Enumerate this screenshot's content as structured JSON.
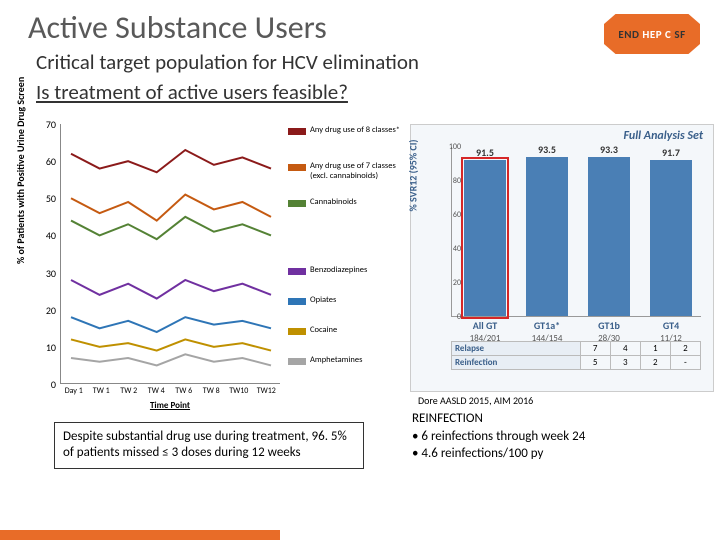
{
  "title": "Active Substance Users",
  "subtitle": "Critical target population for HCV elimination",
  "question": "Is treatment of active users feasible?",
  "logo": {
    "end": "END",
    "hepc": "HEP C",
    "sf": "SF",
    "bg": "#e86c28"
  },
  "line_chart": {
    "ylabel": "% of Patients with Positive Urine Drug Screen",
    "ylim": [
      0,
      70
    ],
    "ytick_step": 10,
    "xlabels": [
      "Day 1",
      "TW 1",
      "TW 2",
      "TW 4",
      "TW 6",
      "TW 8",
      "TW10",
      "TW12"
    ],
    "xaxis_title": "Time Point",
    "series": [
      {
        "label": "Any drug use of 8 classes*",
        "color": "#8b1a1a",
        "y": [
          62,
          58,
          60,
          57,
          63,
          59,
          61,
          58
        ]
      },
      {
        "label": "Any drug use of 7 classes (excl. cannabinoids)",
        "color": "#c55a11",
        "y": [
          50,
          46,
          49,
          44,
          51,
          47,
          49,
          45
        ]
      },
      {
        "label": "Cannabinoids",
        "color": "#548235",
        "y": [
          44,
          40,
          43,
          39,
          45,
          41,
          43,
          40
        ]
      },
      {
        "label": "Benzodiazepines",
        "color": "#7030a0",
        "y": [
          28,
          24,
          27,
          23,
          28,
          25,
          27,
          24
        ]
      },
      {
        "label": "Opiates",
        "color": "#2e75b6",
        "y": [
          18,
          15,
          17,
          14,
          18,
          16,
          17,
          15
        ]
      },
      {
        "label": "Cocaine",
        "color": "#bf9000",
        "y": [
          12,
          10,
          11,
          9,
          12,
          10,
          11,
          9
        ]
      },
      {
        "label": "Amphetamines",
        "color": "#a5a5a5",
        "y": [
          7,
          6,
          7,
          5,
          8,
          6,
          7,
          5
        ]
      }
    ],
    "legend_spacing": [
      0,
      36,
      36,
      68,
      30,
      30,
      30
    ]
  },
  "bar_chart": {
    "title": "Full Analysis Set",
    "ylabel": "% SVR12 (95% CI)",
    "ylim": [
      0,
      100
    ],
    "yticks": [
      0,
      20,
      40,
      60,
      80,
      100
    ],
    "bars": [
      {
        "cat": "All GT",
        "frac": "184/201",
        "val": 91.5,
        "color": "#4a7fb5",
        "highlight": true
      },
      {
        "cat": "GT1a*",
        "frac": "144/154",
        "val": 93.5,
        "color": "#4a7fb5",
        "highlight": false
      },
      {
        "cat": "GT1b",
        "frac": "28/30",
        "val": 93.3,
        "color": "#4a7fb5",
        "highlight": false
      },
      {
        "cat": "GT4",
        "frac": "11/12",
        "val": 91.7,
        "color": "#4a7fb5",
        "highlight": false
      }
    ],
    "table": {
      "rows": [
        {
          "label": "Relapse",
          "cells": [
            "7",
            "4",
            "1",
            "2"
          ]
        },
        {
          "label": "Reinfection",
          "cells": [
            "5",
            "3",
            "2",
            "-"
          ]
        }
      ]
    }
  },
  "citation": "Dore AASLD 2015, AIM 2016",
  "callout1": "Despite substantial drug use during treatment, 96. 5% of patients missed ≤ 3 doses during 12 weeks",
  "callout2": {
    "heading": "REINFECTION",
    "bullets": [
      "6 reinfections through week 24",
      "4.6 reinfections/100 py"
    ]
  }
}
